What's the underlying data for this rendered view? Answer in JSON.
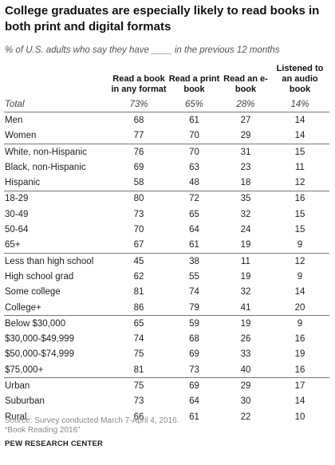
{
  "title": "College graduates are especially likely to read books in both print and digital formats",
  "subtitle": "% of U.S. adults who say they have ____ in the previous 12 months",
  "chart_data": {
    "type": "table",
    "columns": [
      "",
      "Read a book in any format",
      "Read a print book",
      "Read an e-book",
      "Listened to an audio book"
    ],
    "groups": [
      {
        "rows": [
          {
            "label": "Total",
            "values": [
              "73%",
              "65%",
              "28%",
              "14%"
            ]
          }
        ]
      },
      {
        "rows": [
          {
            "label": "Men",
            "values": [
              "68",
              "61",
              "27",
              "14"
            ]
          },
          {
            "label": "Women",
            "values": [
              "77",
              "70",
              "29",
              "14"
            ]
          }
        ]
      },
      {
        "rows": [
          {
            "label": "White, non-Hispanic",
            "values": [
              "76",
              "70",
              "31",
              "15"
            ]
          },
          {
            "label": "Black, non-Hispanic",
            "values": [
              "69",
              "63",
              "23",
              "11"
            ]
          },
          {
            "label": "Hispanic",
            "values": [
              "58",
              "48",
              "18",
              "12"
            ]
          }
        ]
      },
      {
        "rows": [
          {
            "label": "18-29",
            "values": [
              "80",
              "72",
              "35",
              "16"
            ]
          },
          {
            "label": "30-49",
            "values": [
              "73",
              "65",
              "32",
              "15"
            ]
          },
          {
            "label": "50-64",
            "values": [
              "70",
              "64",
              "24",
              "15"
            ]
          },
          {
            "label": "65+",
            "values": [
              "67",
              "61",
              "19",
              "9"
            ]
          }
        ]
      },
      {
        "rows": [
          {
            "label": "Less than high school",
            "values": [
              "45",
              "38",
              "11",
              "12"
            ]
          },
          {
            "label": "High school grad",
            "values": [
              "62",
              "55",
              "19",
              "9"
            ]
          },
          {
            "label": "Some college",
            "values": [
              "81",
              "74",
              "32",
              "14"
            ]
          },
          {
            "label": "College+",
            "values": [
              "86",
              "79",
              "41",
              "20"
            ]
          }
        ]
      },
      {
        "rows": [
          {
            "label": "Below $30,000",
            "values": [
              "65",
              "59",
              "19",
              "9"
            ]
          },
          {
            "label": "$30,000-$49,999",
            "values": [
              "74",
              "68",
              "26",
              "16"
            ]
          },
          {
            "label": "$50,000-$74,999",
            "values": [
              "75",
              "69",
              "33",
              "19"
            ]
          },
          {
            "label": "$75,000+",
            "values": [
              "81",
              "73",
              "40",
              "16"
            ]
          }
        ]
      },
      {
        "rows": [
          {
            "label": "Urban",
            "values": [
              "75",
              "69",
              "29",
              "17"
            ]
          },
          {
            "label": "Suburban",
            "values": [
              "73",
              "64",
              "30",
              "14"
            ]
          },
          {
            "label": "Rural",
            "values": [
              "66",
              "61",
              "22",
              "10"
            ]
          }
        ]
      }
    ]
  },
  "source_line1": "Source: Survey conducted March 7-April 4, 2016.",
  "source_line2": "“Book Reading 2016”",
  "brand": "PEW RESEARCH CENTER"
}
